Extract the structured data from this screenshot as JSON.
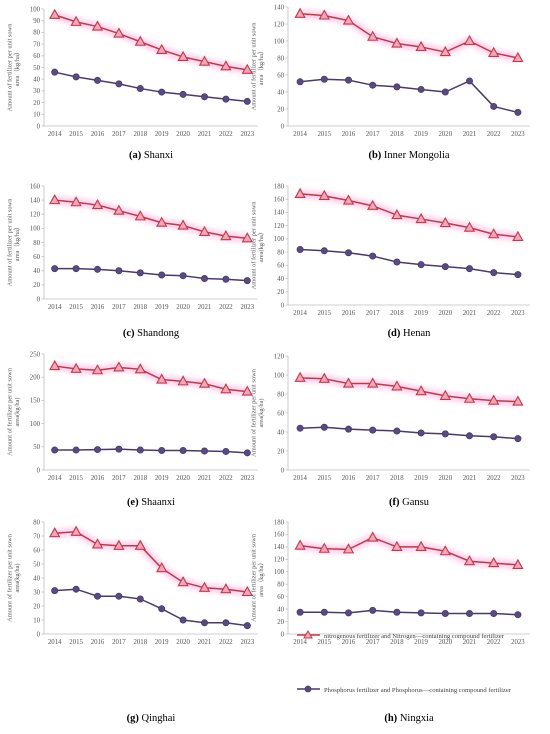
{
  "colors": {
    "nitrogen": "#C0394B",
    "nitrogen_marker": "#F2A7B8",
    "phosphorus": "#4A3A6A",
    "phosphorus_marker": "#5A4A82",
    "axis": "#BFBFBF",
    "glow": "#FF9ED8"
  },
  "legend": {
    "nitrogen": "nitrogenous fertilizer and Nitrogen—containing compound fertilizer",
    "phosphorus": "Phosphorus fertilizer and Phosphorus—containing compound fertilizer"
  },
  "chart_data": [
    {
      "type": "line",
      "letter": "(a)",
      "name": "Shanxi",
      "ylabel": "Amount of fertilizer per unit sown area（kg/ha）",
      "x": [
        "2014",
        "2015",
        "2016",
        "2017",
        "2018",
        "2019",
        "2020",
        "2021",
        "2022",
        "2023"
      ],
      "ylim": [
        0,
        100
      ],
      "yticks": [
        0,
        10,
        20,
        30,
        40,
        50,
        60,
        70,
        80,
        90,
        100
      ],
      "series": [
        {
          "key": "nitrogen",
          "values": [
            95,
            89,
            85,
            79,
            72,
            65,
            59,
            55,
            51,
            48
          ]
        },
        {
          "key": "phosphorus",
          "values": [
            46,
            42,
            39,
            36,
            32,
            29,
            27,
            25,
            23,
            21
          ]
        }
      ]
    },
    {
      "type": "line",
      "letter": "(b)",
      "name": "Inner Mongolia",
      "ylabel": "Amount of fertilizer per unit sown area（kg/ha）",
      "x": [
        "2014",
        "2015",
        "2016",
        "2017",
        "2018",
        "2019",
        "2020",
        "2021",
        "2022",
        "2023"
      ],
      "ylim": [
        0,
        140
      ],
      "yticks": [
        0,
        20,
        40,
        60,
        80,
        100,
        120,
        140
      ],
      "series": [
        {
          "key": "nitrogen",
          "values": [
            132,
            130,
            124,
            105,
            97,
            93,
            87,
            100,
            86,
            80
          ]
        },
        {
          "key": "phosphorus",
          "values": [
            52,
            55,
            54,
            48,
            46,
            43,
            40,
            53,
            23,
            16
          ]
        }
      ]
    },
    {
      "type": "line",
      "letter": "(c)",
      "name": "Shandong",
      "ylabel": "Amount of fertilizer per unit sown area（kg/ha）",
      "x": [
        "2014",
        "2015",
        "2016",
        "2017",
        "2018",
        "2019",
        "2020",
        "2021",
        "2022",
        "2023"
      ],
      "ylim": [
        0,
        160
      ],
      "yticks": [
        0,
        20,
        40,
        60,
        80,
        100,
        120,
        140,
        160
      ],
      "series": [
        {
          "key": "nitrogen",
          "values": [
            140,
            137,
            133,
            125,
            117,
            108,
            104,
            95,
            89,
            86
          ]
        },
        {
          "key": "phosphorus",
          "values": [
            43,
            43,
            42,
            40,
            37,
            34,
            33,
            29,
            28,
            26
          ]
        }
      ]
    },
    {
      "type": "line",
      "letter": "(d)",
      "name": "Henan",
      "ylabel": "Amount of fertilizer per unit sown area(kg/ha）",
      "x": [
        "2014",
        "2015",
        "2016",
        "2017",
        "2018",
        "2019",
        "2020",
        "2021",
        "2022",
        "2023"
      ],
      "ylim": [
        0,
        180
      ],
      "yticks": [
        0,
        20,
        40,
        60,
        80,
        100,
        120,
        140,
        160,
        180
      ],
      "series": [
        {
          "key": "nitrogen",
          "values": [
            168,
            165,
            158,
            150,
            136,
            130,
            124,
            117,
            107,
            103
          ]
        },
        {
          "key": "phosphorus",
          "values": [
            84,
            82,
            79,
            74,
            65,
            61,
            58,
            55,
            49,
            46
          ]
        }
      ]
    },
    {
      "type": "line",
      "letter": "(e)",
      "name": "Shaanxi",
      "ylabel": "Amount of fertilizer per unit sown area(kg/ha)",
      "x": [
        "2014",
        "2015",
        "2016",
        "2017",
        "2018",
        "2019",
        "2020",
        "2021",
        "2022",
        "2023"
      ],
      "ylim": [
        0,
        250
      ],
      "yticks": [
        0,
        50,
        100,
        150,
        200,
        250
      ],
      "series": [
        {
          "key": "nitrogen",
          "values": [
            224,
            218,
            215,
            221,
            217,
            195,
            191,
            186,
            174,
            169
          ]
        },
        {
          "key": "phosphorus",
          "values": [
            43,
            43,
            44,
            45,
            43,
            42,
            42,
            41,
            40,
            37
          ]
        }
      ]
    },
    {
      "type": "line",
      "letter": "(f)",
      "name": "Gansu",
      "ylabel": "Amount of fertilizer per unit sown area(kg/ha)",
      "x": [
        "2014",
        "2015",
        "2016",
        "2017",
        "2018",
        "2019",
        "2020",
        "2021",
        "2022",
        "2023"
      ],
      "ylim": [
        0,
        120
      ],
      "yticks": [
        0,
        20,
        40,
        60,
        80,
        100,
        120
      ],
      "series": [
        {
          "key": "nitrogen",
          "values": [
            97,
            96,
            91,
            91,
            88,
            83,
            78,
            75,
            73,
            72
          ]
        },
        {
          "key": "phosphorus",
          "values": [
            44,
            45,
            43,
            42,
            41,
            39,
            38,
            36,
            35,
            33
          ]
        }
      ]
    },
    {
      "type": "line",
      "letter": "(g)",
      "name": "Qinghai",
      "ylabel": "Amount of fertilizer per unit sown area(kg/ha)",
      "x": [
        "2014",
        "2015",
        "2016",
        "2017",
        "2018",
        "2019",
        "2020",
        "2021",
        "2022",
        "2023"
      ],
      "ylim": [
        0,
        80
      ],
      "yticks": [
        0,
        10,
        20,
        30,
        40,
        50,
        60,
        70,
        80
      ],
      "series": [
        {
          "key": "nitrogen",
          "values": [
            72,
            73,
            64,
            63,
            63,
            47,
            37,
            33,
            32,
            30
          ]
        },
        {
          "key": "phosphorus",
          "values": [
            31,
            32,
            27,
            27,
            25,
            18,
            10,
            8,
            8,
            6
          ]
        }
      ]
    },
    {
      "type": "line",
      "letter": "(h)",
      "name": "Ningxia",
      "ylabel": "Amount of fertilizer per unit sown area（kg/ha）",
      "x": [
        "2014",
        "2015",
        "2016",
        "2017",
        "2018",
        "2019",
        "2020",
        "2021",
        "2022",
        "2023"
      ],
      "ylim": [
        0,
        180
      ],
      "yticks": [
        0,
        20,
        40,
        60,
        80,
        100,
        120,
        140,
        160,
        180
      ],
      "series": [
        {
          "key": "nitrogen",
          "values": [
            142,
            137,
            136,
            155,
            140,
            140,
            133,
            117,
            114,
            111
          ]
        },
        {
          "key": "phosphorus",
          "values": [
            35,
            35,
            34,
            38,
            35,
            34,
            33,
            33,
            33,
            31
          ]
        }
      ]
    }
  ]
}
